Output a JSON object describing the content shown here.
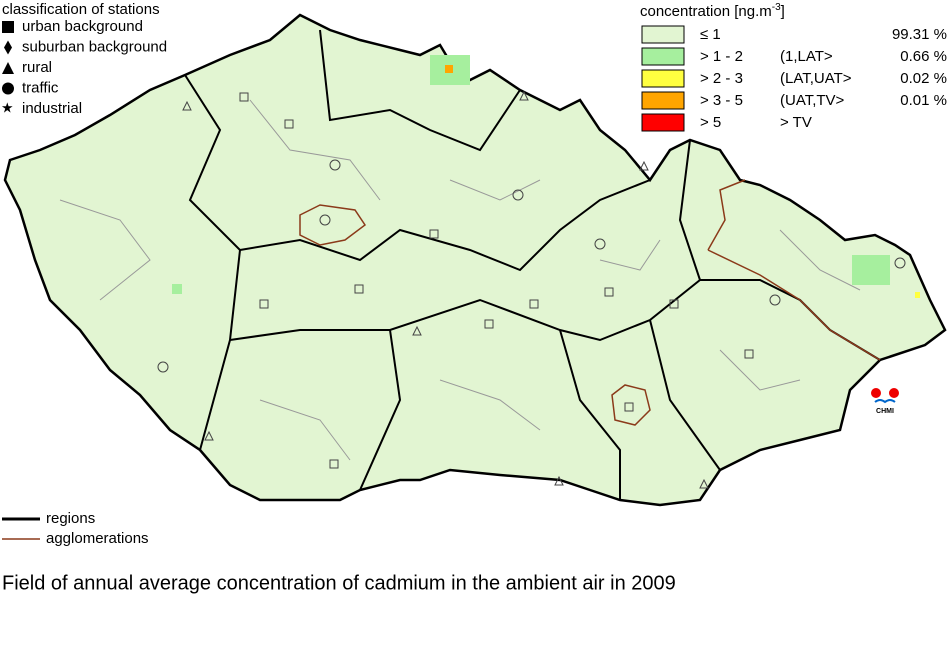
{
  "station_legend": {
    "title": "classification of stations",
    "items": [
      "urban background",
      "suburban background",
      "rural",
      "traffic",
      "industrial"
    ]
  },
  "concentration_legend": {
    "title": "concentration [ng.m",
    "title_sup": "-3",
    "title_end": "]",
    "rows": [
      {
        "range": "≤ 1",
        "share": "99.31 %",
        "color": "#e2f5d2"
      },
      {
        "range": "> 1 - 2",
        "interval": "(1,LAT>",
        "share": "0.66 %",
        "color": "#a6ef9e"
      },
      {
        "range": "> 2 - 3",
        "interval": "(LAT,UAT>",
        "share": "0.02 %",
        "color": "#ffff40"
      },
      {
        "range": "> 3 - 5",
        "interval": "(UAT,TV>",
        "share": "0.01 %",
        "color": "#ffa500"
      },
      {
        "range": "> 5",
        "interval": "> TV",
        "color": "#ff0000"
      }
    ]
  },
  "line_legend": [
    "regions",
    "agglomerations"
  ],
  "logo": "CHMI",
  "caption": "Field of annual average concentration of cadmium in the ambient air in 2009"
}
